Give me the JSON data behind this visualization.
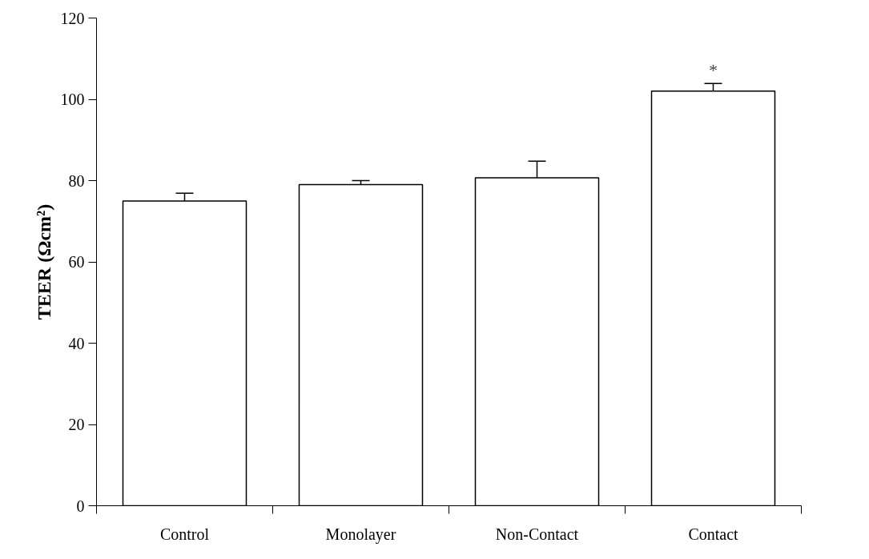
{
  "chart_data": {
    "type": "bar",
    "ylabel": "TEER (Ωcm²)",
    "categories": [
      "Control",
      "Monolayer",
      "Non-Contact",
      "Contact"
    ],
    "values": [
      75,
      79,
      80.7,
      102
    ],
    "errors": [
      [
        75,
        76.9
      ],
      [
        79,
        80
      ],
      [
        80.7,
        84.8
      ],
      [
        102,
        103.9
      ]
    ],
    "color": "#ffffff",
    "ylim": [
      0,
      120
    ],
    "yticks": [
      0,
      20,
      40,
      60,
      80,
      100,
      120
    ],
    "grid": false,
    "annotations": [
      {
        "text": "*",
        "x": "Contact",
        "y": 103.9
      }
    ]
  }
}
